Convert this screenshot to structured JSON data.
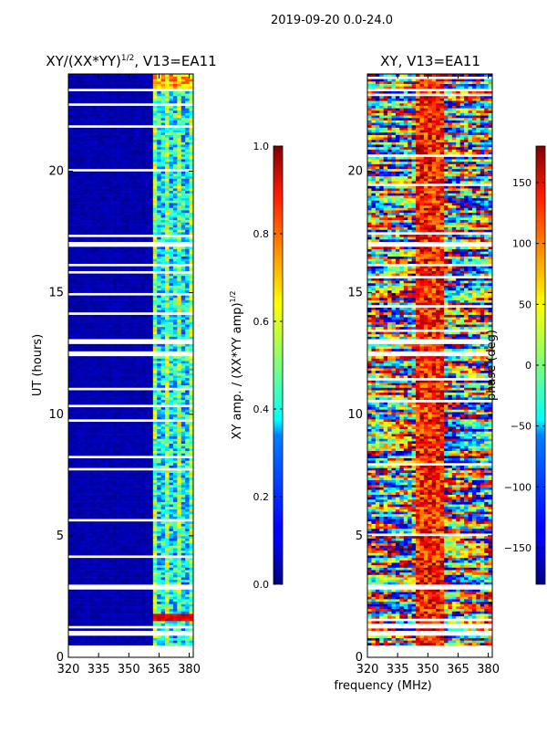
{
  "suptitle": "2019-09-20 0.0-24.0",
  "chart_data": [
    {
      "type": "heatmap",
      "title_main": "XY/(XX*YY)",
      "title_sup": "1/2",
      "title_suffix": ", V13=EA11",
      "xlabel": "",
      "ylabel": "UT (hours)",
      "xlim": [
        320,
        382
      ],
      "ylim": [
        0,
        24
      ],
      "xticks": [
        320,
        335,
        350,
        365,
        380
      ],
      "yticks": [
        0,
        5,
        10,
        15,
        20
      ],
      "colorbar": {
        "label_main": "XY amp. / (XX*YY amp)",
        "label_sup": "1/2",
        "range": [
          0.0,
          1.0
        ],
        "ticks": [
          "0.0",
          "0.2",
          "0.4",
          "0.6",
          "0.8",
          "1.0"
        ],
        "colormap": "jet"
      },
      "flagged_hours": [
        [
          0.0,
          0.45
        ],
        [
          0.95,
          1.05
        ],
        [
          1.2,
          1.35
        ],
        [
          2.8,
          2.95
        ],
        [
          12.4,
          12.6
        ],
        [
          12.95,
          13.1
        ],
        [
          16.9,
          17.1
        ],
        [
          23.3,
          23.4
        ]
      ]
    },
    {
      "type": "heatmap",
      "title_main": "XY, V13=EA11",
      "xlabel": "frequency (MHz)",
      "ylabel": "",
      "xlim": [
        320,
        382
      ],
      "ylim": [
        0,
        24
      ],
      "xticks": [
        320,
        335,
        350,
        365,
        380
      ],
      "yticks": [
        0,
        5,
        10,
        15,
        20
      ],
      "colorbar": {
        "label_main": "phase (deg)",
        "range": [
          -180,
          180
        ],
        "ticks": [
          "−150",
          "−100",
          "−50",
          "0",
          "50",
          "100",
          "150"
        ],
        "colormap": "jet"
      },
      "flagged_hours": [
        [
          0.0,
          0.45
        ],
        [
          0.95,
          1.05
        ],
        [
          1.2,
          1.35
        ],
        [
          2.8,
          2.95
        ],
        [
          12.4,
          12.6
        ],
        [
          12.95,
          13.1
        ],
        [
          16.9,
          17.1
        ],
        [
          23.3,
          23.4
        ]
      ]
    }
  ]
}
